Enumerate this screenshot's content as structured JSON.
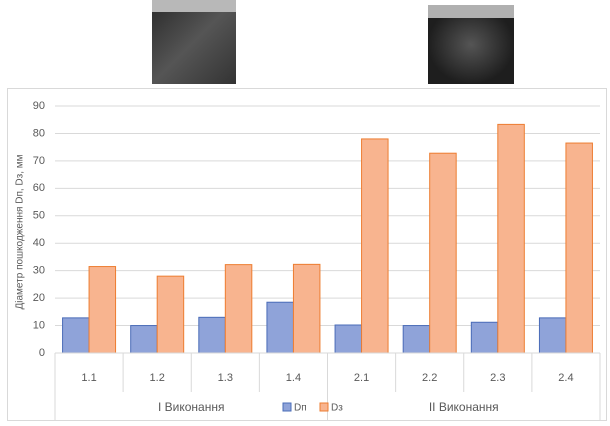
{
  "chart_data": {
    "type": "bar",
    "categories": [
      "1.1",
      "1.2",
      "1.3",
      "1.4",
      "2.1",
      "2.2",
      "2.3",
      "2.4"
    ],
    "groups": [
      "I Виконання",
      "II Виконання"
    ],
    "y_label": "Діаметр пошкодження Dп, Dз, мм",
    "series": [
      {
        "name": "Dп",
        "color": "#8fa3d9",
        "values": [
          12.8,
          10,
          13,
          18.5,
          10.2,
          10,
          11.2,
          12.8
        ]
      },
      {
        "name": "Dз",
        "color": "#f8b48f",
        "values": [
          31.5,
          28,
          32.2,
          32.3,
          78,
          72.8,
          83.3,
          76.5
        ]
      }
    ],
    "ylim": [
      0,
      90
    ],
    "yticks": [
      0,
      10,
      20,
      30,
      40,
      50,
      60,
      70,
      80,
      90
    ],
    "grid": true
  }
}
